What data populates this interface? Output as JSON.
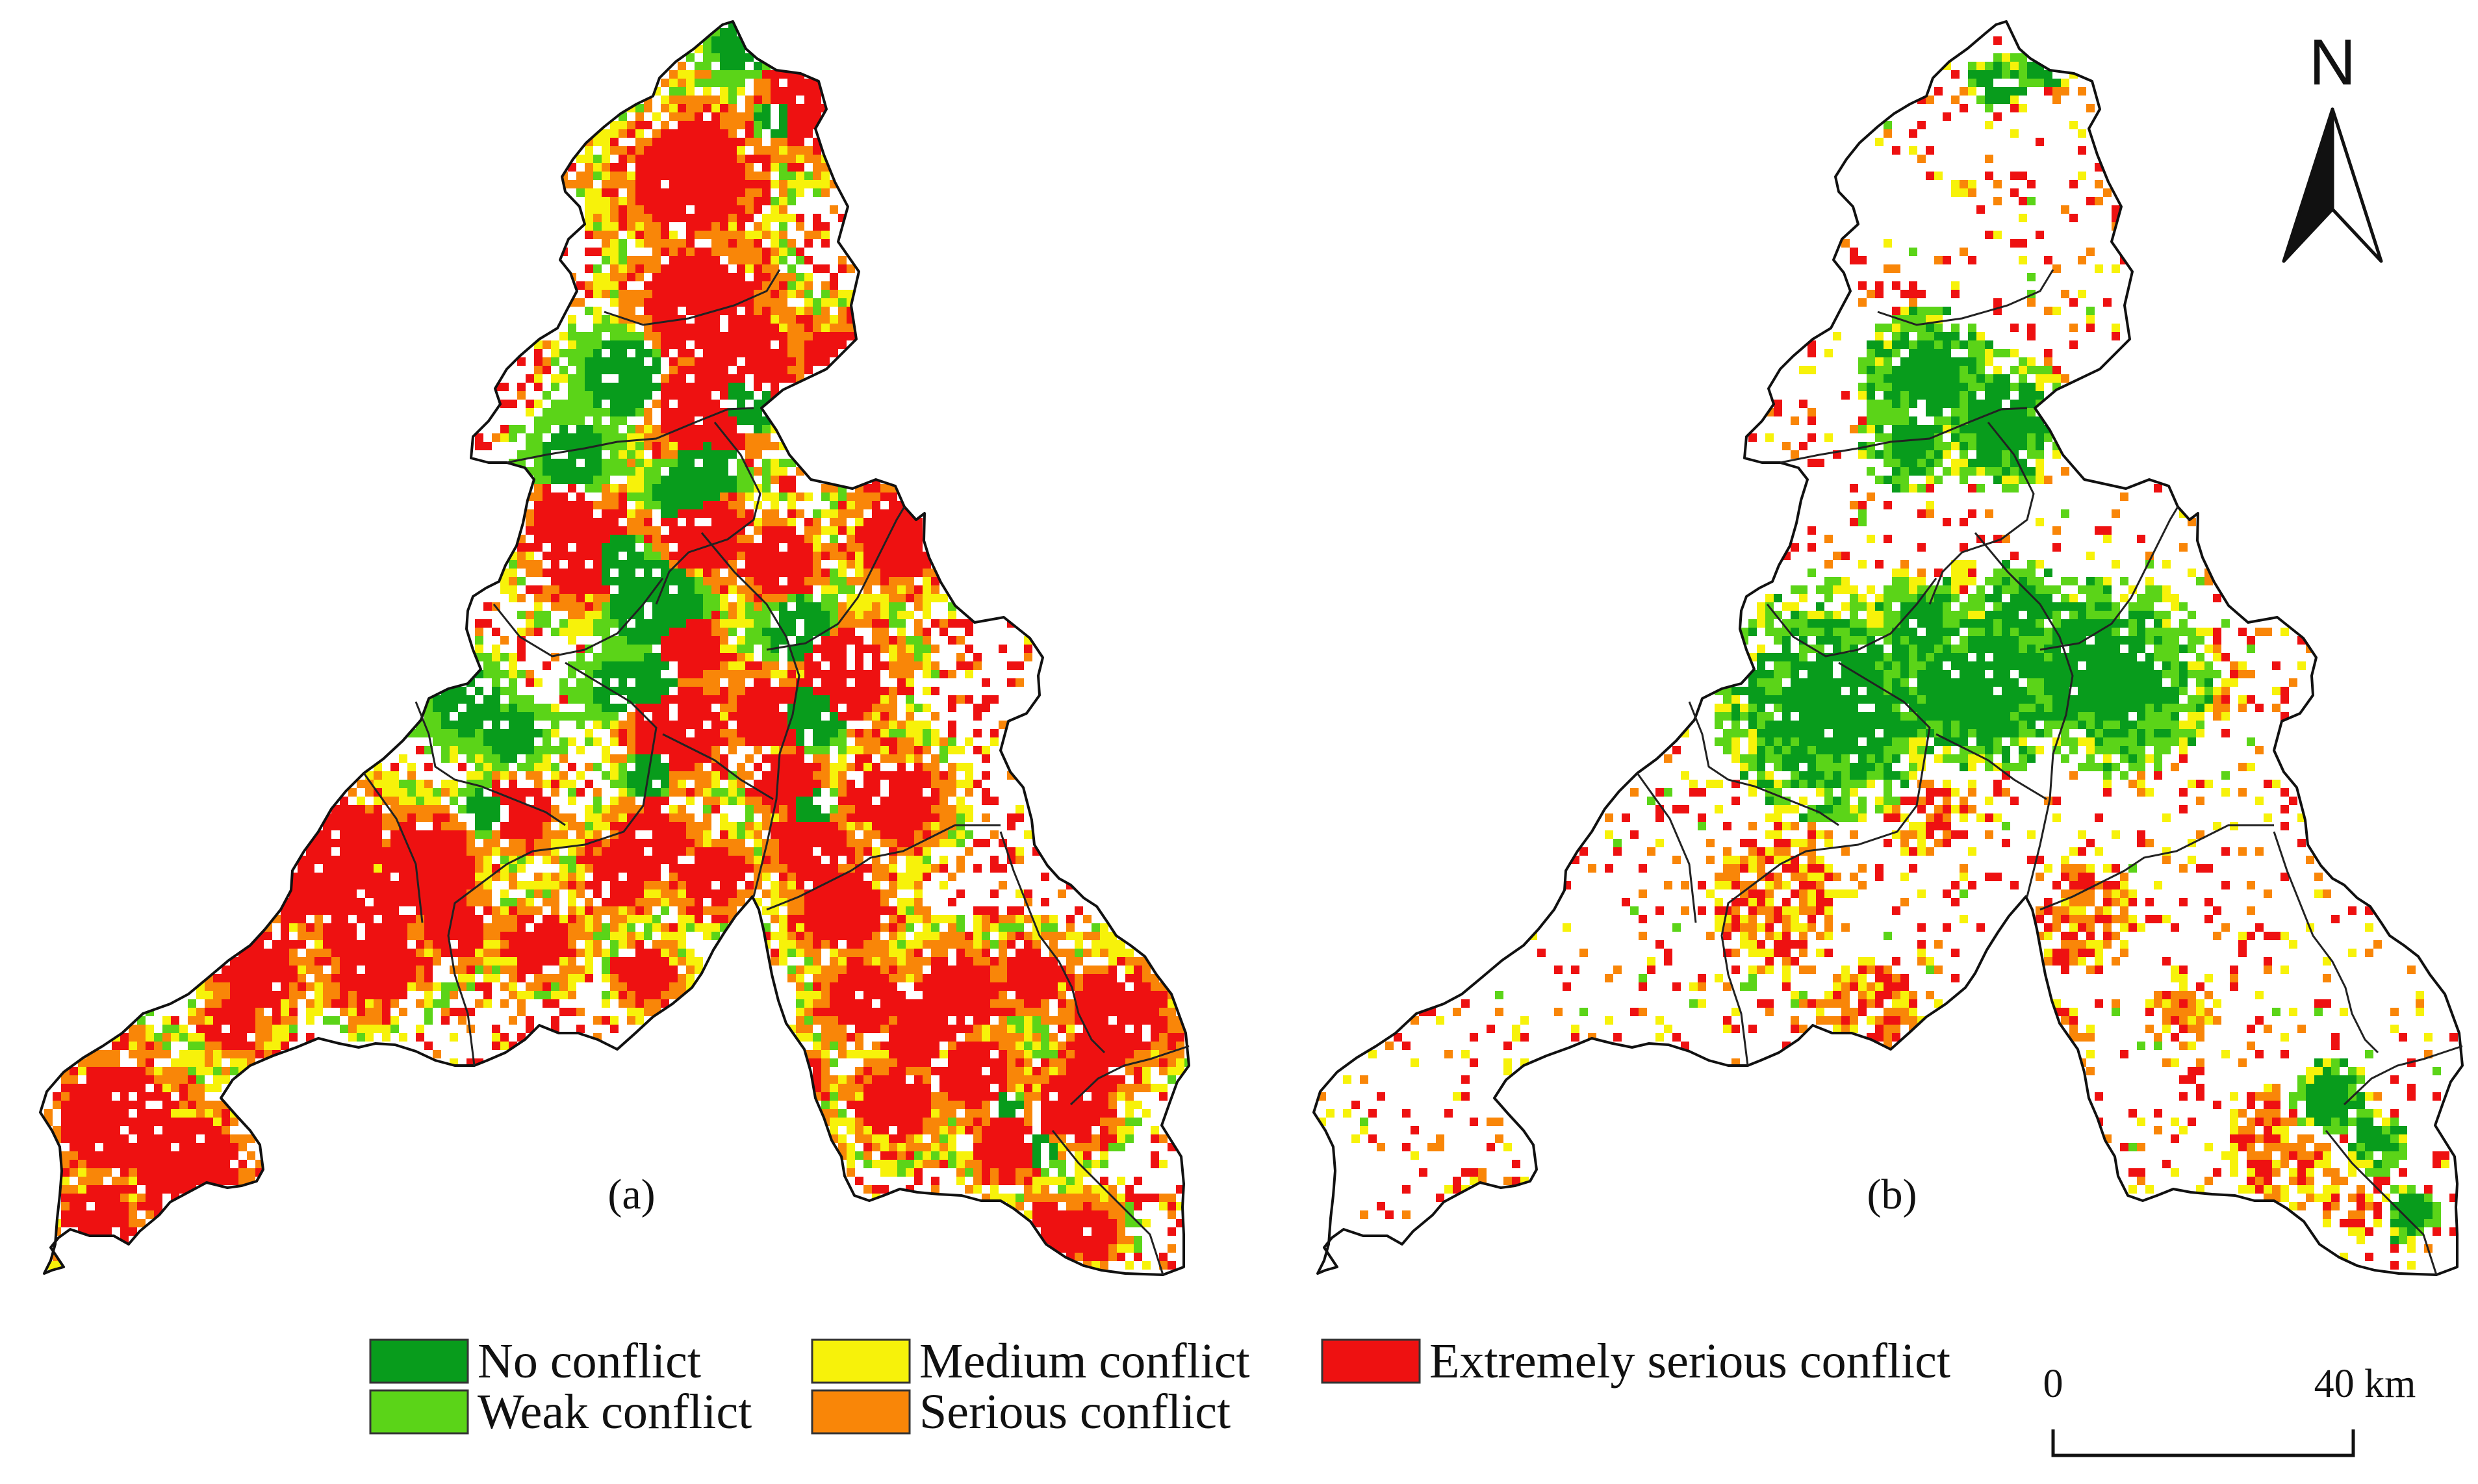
{
  "panels": [
    {
      "label": "(a)",
      "cell_fractions": {
        "none": 0.05,
        "weak": 0.05,
        "medium": 0.14,
        "serious": 0.18,
        "extreme": 0.28
      }
    },
    {
      "label": "(b)",
      "cell_fractions": {
        "none": 0.02,
        "weak": 0.03,
        "medium": 0.04,
        "serious": 0.03,
        "extreme": 0.05
      }
    }
  ],
  "legend": {
    "items": [
      {
        "key": "none",
        "label": "No conflict",
        "color": "#089c1c"
      },
      {
        "key": "weak",
        "label": "Weak conflict",
        "color": "#5bd418"
      },
      {
        "key": "medium",
        "label": "Medium conflict",
        "color": "#f7f20a"
      },
      {
        "key": "serious",
        "label": "Serious conflict",
        "color": "#f98608"
      },
      {
        "key": "extreme",
        "label": "Extremely serious conflict",
        "color": "#ee1111"
      }
    ]
  },
  "north_arrow": {
    "label": "N",
    "icon": "north-arrow-icon"
  },
  "scale_bar": {
    "start_label": "0",
    "end_label": "40 km",
    "length_km": 40
  }
}
